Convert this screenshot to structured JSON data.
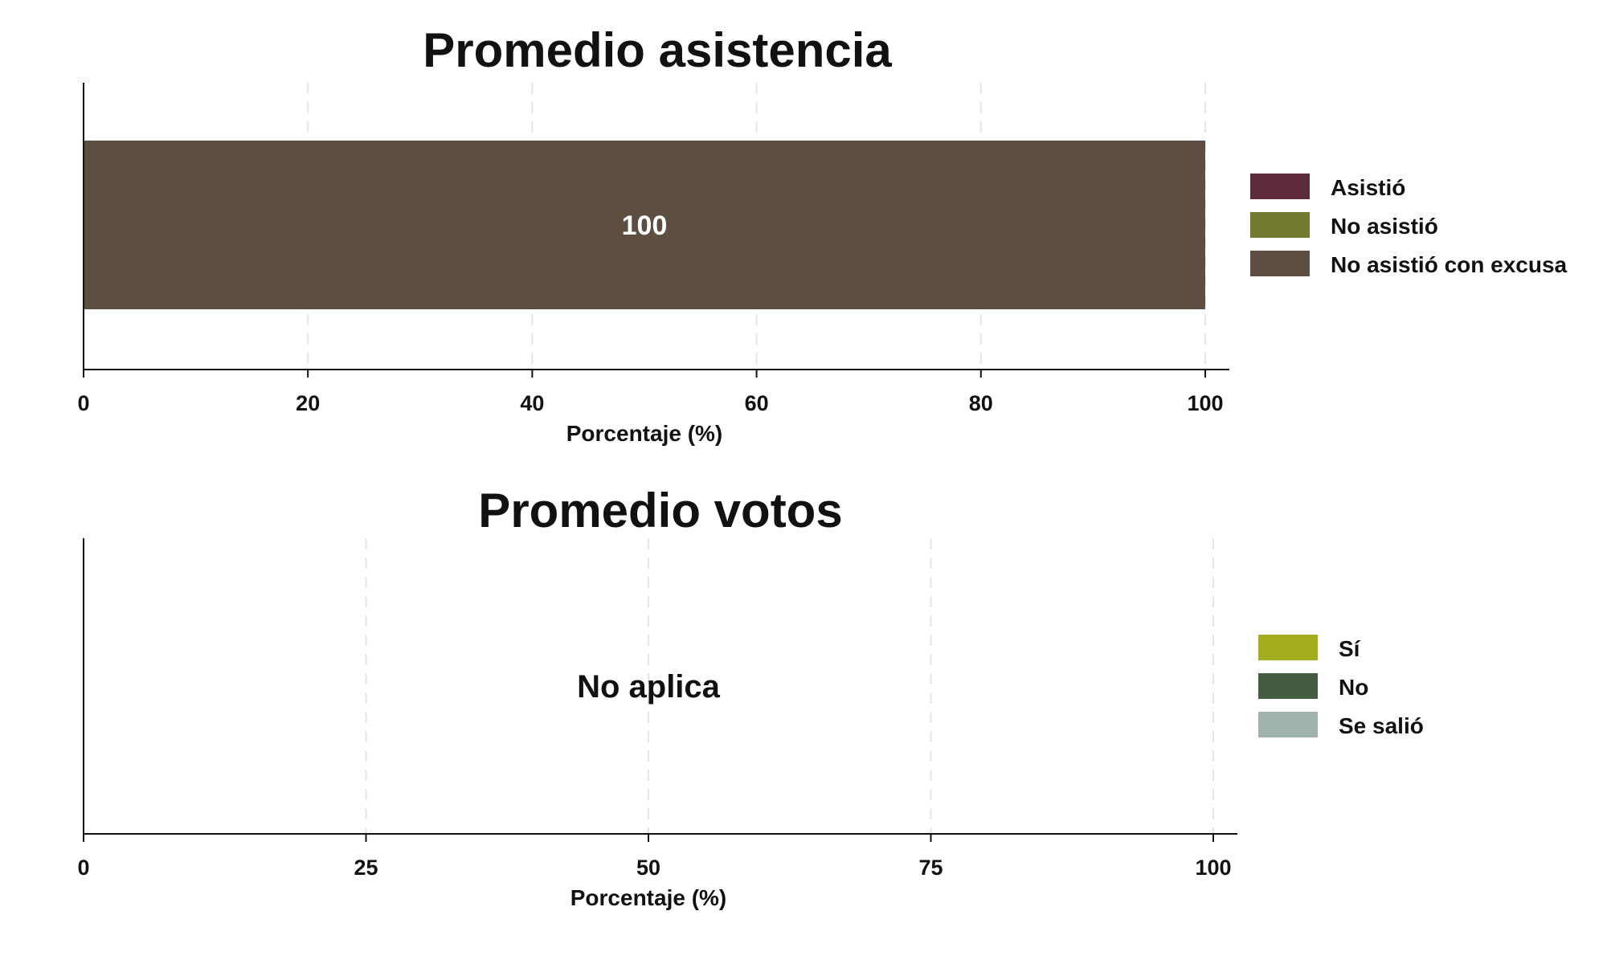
{
  "chart_data": [
    {
      "type": "bar",
      "orientation": "horizontal",
      "stacked": true,
      "title": "Promedio asistencia",
      "xlabel": "Porcentaje (%)",
      "ylabel": "",
      "xlim": [
        0,
        100
      ],
      "xticks": [
        "0",
        "20",
        "40",
        "60",
        "80",
        "100"
      ],
      "grid": "vertical-dashed",
      "legend_position": "right",
      "legend": [
        {
          "label": "Asistió",
          "color": "#5e2c3c"
        },
        {
          "label": "No asistió",
          "color": "#737a2e"
        },
        {
          "label": "No asistió con excusa",
          "color": "#5c4e41"
        }
      ],
      "series": [
        {
          "name": "Asistió",
          "values": [
            0
          ],
          "color": "#5e2c3c"
        },
        {
          "name": "No asistió",
          "values": [
            0
          ],
          "color": "#737a2e"
        },
        {
          "name": "No asistió con excusa",
          "values": [
            100
          ],
          "color": "#5c4e41"
        }
      ],
      "data_labels": [
        "100"
      ]
    },
    {
      "type": "bar",
      "orientation": "horizontal",
      "stacked": true,
      "title": "Promedio votos",
      "xlabel": "Porcentaje (%)",
      "ylabel": "",
      "xlim": [
        0,
        100
      ],
      "xticks": [
        "0",
        "25",
        "50",
        "75",
        "100"
      ],
      "grid": "vertical-dashed",
      "legend_position": "right",
      "legend": [
        {
          "label": "Sí",
          "color": "#a3ad1e"
        },
        {
          "label": "No",
          "color": "#465c42"
        },
        {
          "label": "Se salió",
          "color": "#a1b2ac"
        }
      ],
      "series": [],
      "note": "No aplica"
    }
  ]
}
